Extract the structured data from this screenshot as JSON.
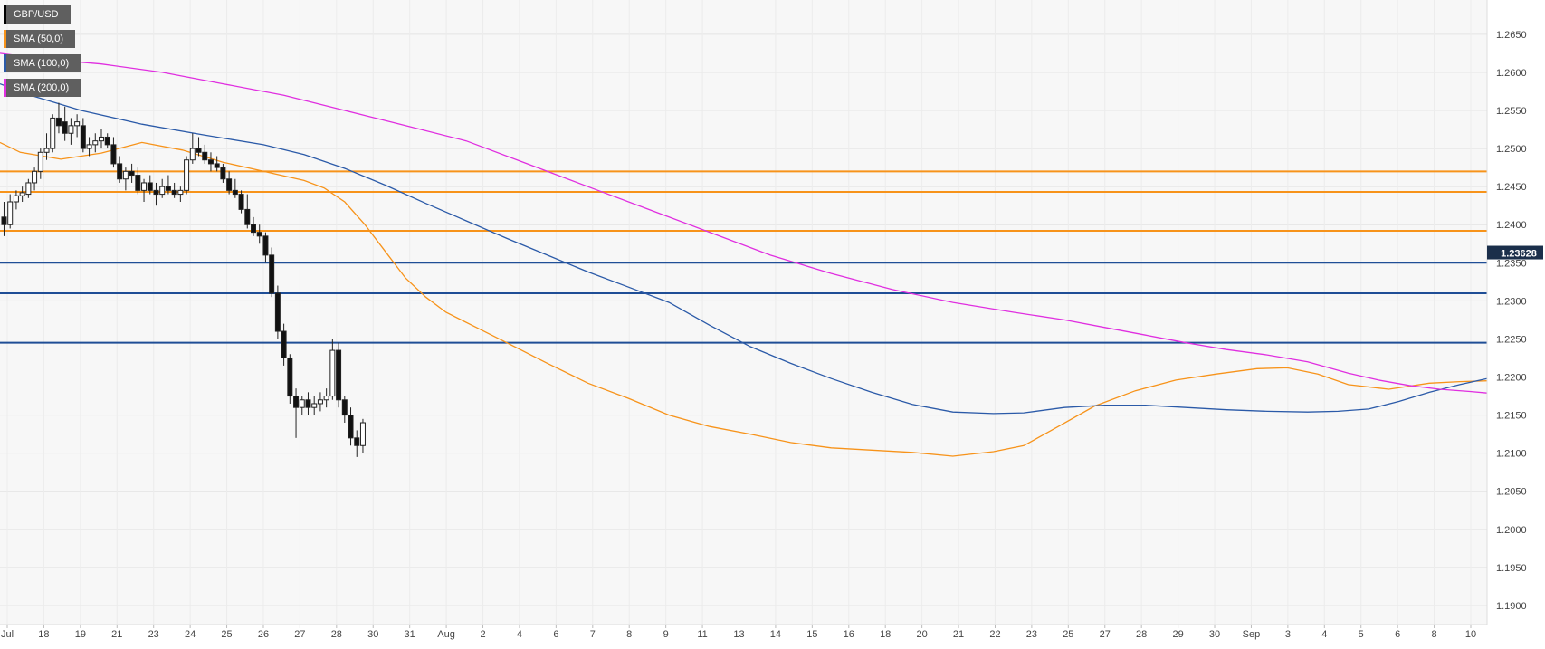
{
  "chart_data": {
    "type": "candlestick",
    "symbol": "GBP/USD",
    "last_price": 1.23628,
    "last_price_label": "1.23628",
    "ylim": [
      1.1875,
      1.2695
    ],
    "y_ticks": [
      "1.2650",
      "1.2600",
      "1.2550",
      "1.2500",
      "1.2450",
      "1.2400",
      "1.2350",
      "1.2300",
      "1.2250",
      "1.2200",
      "1.2150",
      "1.2100",
      "1.2050",
      "1.2000",
      "1.1950",
      "1.1900"
    ],
    "x_ticks": [
      "Jul",
      "18",
      "19",
      "21",
      "23",
      "24",
      "25",
      "26",
      "27",
      "28",
      "30",
      "31",
      "Aug",
      "2",
      "4",
      "6",
      "7",
      "8",
      "9",
      "11",
      "13",
      "14",
      "15",
      "16",
      "18",
      "20",
      "21",
      "22",
      "23",
      "25",
      "27",
      "28",
      "29",
      "30",
      "Sep",
      "3",
      "4",
      "5",
      "6",
      "8",
      "10"
    ],
    "grid": true,
    "legend_position": "top-left",
    "legend": [
      {
        "label": "GBP/USD",
        "color": "#000000"
      },
      {
        "label": "SMA (50,0)",
        "color": "#f7931a"
      },
      {
        "label": "SMA (100,0)",
        "color": "#2b5aa8"
      },
      {
        "label": "SMA (200,0)",
        "color": "#e02fe0"
      }
    ],
    "resistance_levels": [
      1.247,
      1.2443,
      1.2392
    ],
    "support_levels": [
      1.235,
      1.231,
      1.2245
    ],
    "resistance_color": "#f7931a",
    "support_color": "#1f4e96",
    "series": [
      {
        "name": "SMA (50,0)",
        "color": "#f7931a",
        "points": [
          [
            0,
            1.2508
          ],
          [
            20,
            1.2495
          ],
          [
            60,
            1.2486
          ],
          [
            100,
            1.2494
          ],
          [
            140,
            1.2508
          ],
          [
            180,
            1.2498
          ],
          [
            220,
            1.2482
          ],
          [
            260,
            1.247
          ],
          [
            300,
            1.2458
          ],
          [
            320,
            1.2448
          ],
          [
            340,
            1.243
          ],
          [
            360,
            1.24
          ],
          [
            380,
            1.2365
          ],
          [
            400,
            1.233
          ],
          [
            420,
            1.2305
          ],
          [
            440,
            1.2285
          ],
          [
            470,
            1.2265
          ],
          [
            500,
            1.2245
          ],
          [
            540,
            1.2218
          ],
          [
            580,
            1.2192
          ],
          [
            620,
            1.2172
          ],
          [
            660,
            1.215
          ],
          [
            700,
            1.2135
          ],
          [
            740,
            1.2125
          ],
          [
            780,
            1.2114
          ],
          [
            820,
            1.2107
          ],
          [
            860,
            1.2104
          ],
          [
            900,
            1.2101
          ],
          [
            940,
            1.2096
          ],
          [
            980,
            1.2102
          ],
          [
            1010,
            1.211
          ],
          [
            1040,
            1.2132
          ],
          [
            1080,
            1.2162
          ],
          [
            1120,
            1.2182
          ],
          [
            1160,
            1.2196
          ],
          [
            1200,
            1.2204
          ],
          [
            1240,
            1.2211
          ],
          [
            1270,
            1.2212
          ],
          [
            1300,
            1.2204
          ],
          [
            1330,
            1.219
          ],
          [
            1370,
            1.2184
          ],
          [
            1410,
            1.2192
          ],
          [
            1440,
            1.2194
          ],
          [
            1467,
            1.2195
          ]
        ]
      },
      {
        "name": "SMA (100,0)",
        "color": "#2b5aa8",
        "points": [
          [
            0,
            1.2585
          ],
          [
            30,
            1.257
          ],
          [
            80,
            1.255
          ],
          [
            140,
            1.2532
          ],
          [
            200,
            1.2518
          ],
          [
            260,
            1.2505
          ],
          [
            300,
            1.2492
          ],
          [
            340,
            1.2474
          ],
          [
            380,
            1.2452
          ],
          [
            420,
            1.2428
          ],
          [
            460,
            1.2405
          ],
          [
            500,
            1.2382
          ],
          [
            540,
            1.236
          ],
          [
            580,
            1.2338
          ],
          [
            620,
            1.2318
          ],
          [
            660,
            1.2298
          ],
          [
            700,
            1.2268
          ],
          [
            740,
            1.224
          ],
          [
            780,
            1.2218
          ],
          [
            820,
            1.2198
          ],
          [
            860,
            1.218
          ],
          [
            900,
            1.2164
          ],
          [
            940,
            1.2154
          ],
          [
            980,
            1.2152
          ],
          [
            1010,
            1.2153
          ],
          [
            1050,
            1.216
          ],
          [
            1090,
            1.2163
          ],
          [
            1130,
            1.2163
          ],
          [
            1170,
            1.216
          ],
          [
            1210,
            1.2157
          ],
          [
            1250,
            1.2155
          ],
          [
            1290,
            1.2154
          ],
          [
            1320,
            1.2155
          ],
          [
            1350,
            1.2158
          ],
          [
            1380,
            1.2168
          ],
          [
            1410,
            1.218
          ],
          [
            1440,
            1.219
          ],
          [
            1467,
            1.2198
          ]
        ]
      },
      {
        "name": "SMA (200,0)",
        "color": "#e02fe0",
        "points": [
          [
            0,
            1.2625
          ],
          [
            40,
            1.2618
          ],
          [
            100,
            1.2611
          ],
          [
            160,
            1.26
          ],
          [
            220,
            1.2585
          ],
          [
            280,
            1.257
          ],
          [
            340,
            1.255
          ],
          [
            400,
            1.253
          ],
          [
            460,
            1.251
          ],
          [
            520,
            1.248
          ],
          [
            580,
            1.245
          ],
          [
            640,
            1.242
          ],
          [
            700,
            1.239
          ],
          [
            760,
            1.236
          ],
          [
            820,
            1.2336
          ],
          [
            880,
            1.2315
          ],
          [
            940,
            1.2298
          ],
          [
            1000,
            1.2285
          ],
          [
            1050,
            1.2275
          ],
          [
            1090,
            1.2265
          ],
          [
            1130,
            1.2255
          ],
          [
            1170,
            1.2245
          ],
          [
            1210,
            1.2236
          ],
          [
            1250,
            1.2229
          ],
          [
            1290,
            1.222
          ],
          [
            1330,
            1.2205
          ],
          [
            1360,
            1.2196
          ],
          [
            1390,
            1.2189
          ],
          [
            1420,
            1.2184
          ],
          [
            1450,
            1.2181
          ],
          [
            1467,
            1.2179
          ]
        ]
      }
    ],
    "candles_note": "x is position index along time axis, values are open/high/low/close",
    "candles": [
      [
        4,
        1.241,
        1.243,
        1.2385,
        1.24
      ],
      [
        10,
        1.24,
        1.244,
        1.2395,
        1.243
      ],
      [
        16,
        1.243,
        1.2445,
        1.242,
        1.2438
      ],
      [
        22,
        1.2438,
        1.245,
        1.243,
        1.2442
      ],
      [
        28,
        1.244,
        1.246,
        1.2435,
        1.2455
      ],
      [
        34,
        1.2455,
        1.2475,
        1.2445,
        1.247
      ],
      [
        40,
        1.247,
        1.25,
        1.246,
        1.2495
      ],
      [
        46,
        1.2495,
        1.252,
        1.2485,
        1.25
      ],
      [
        52,
        1.25,
        1.2545,
        1.2495,
        1.254
      ],
      [
        58,
        1.254,
        1.256,
        1.252,
        1.253
      ],
      [
        64,
        1.2535,
        1.2555,
        1.251,
        1.252
      ],
      [
        70,
        1.252,
        1.254,
        1.2505,
        1.253
      ],
      [
        76,
        1.253,
        1.2545,
        1.2515,
        1.2535
      ],
      [
        82,
        1.253,
        1.254,
        1.2495,
        1.25
      ],
      [
        88,
        1.25,
        1.2515,
        1.249,
        1.2505
      ],
      [
        94,
        1.2505,
        1.252,
        1.2495,
        1.251
      ],
      [
        100,
        1.251,
        1.2525,
        1.25,
        1.2515
      ],
      [
        106,
        1.2515,
        1.252,
        1.25,
        1.2505
      ],
      [
        112,
        1.2505,
        1.2515,
        1.2475,
        1.248
      ],
      [
        118,
        1.248,
        1.249,
        1.2455,
        1.246
      ],
      [
        124,
        1.246,
        1.2475,
        1.2445,
        1.247
      ],
      [
        130,
        1.247,
        1.248,
        1.2455,
        1.2465
      ],
      [
        136,
        1.2465,
        1.2475,
        1.244,
        1.2445
      ],
      [
        142,
        1.2445,
        1.246,
        1.243,
        1.2455
      ],
      [
        148,
        1.2455,
        1.2465,
        1.244,
        1.2445
      ],
      [
        154,
        1.2445,
        1.2455,
        1.2425,
        1.244
      ],
      [
        160,
        1.244,
        1.246,
        1.2435,
        1.245
      ],
      [
        166,
        1.245,
        1.2465,
        1.244,
        1.2445
      ],
      [
        172,
        1.2445,
        1.2455,
        1.2435,
        1.244
      ],
      [
        178,
        1.244,
        1.245,
        1.243,
        1.2445
      ],
      [
        184,
        1.2445,
        1.249,
        1.244,
        1.2485
      ],
      [
        190,
        1.2485,
        1.252,
        1.248,
        1.25
      ],
      [
        196,
        1.25,
        1.2515,
        1.249,
        1.2495
      ],
      [
        202,
        1.2495,
        1.2505,
        1.248,
        1.2485
      ],
      [
        208,
        1.2485,
        1.2495,
        1.247,
        1.248
      ],
      [
        214,
        1.248,
        1.249,
        1.247,
        1.2475
      ],
      [
        220,
        1.2475,
        1.248,
        1.2455,
        1.246
      ],
      [
        226,
        1.246,
        1.247,
        1.244,
        1.2445
      ],
      [
        232,
        1.2445,
        1.246,
        1.2435,
        1.244
      ],
      [
        238,
        1.244,
        1.2445,
        1.2415,
        1.242
      ],
      [
        244,
        1.242,
        1.244,
        1.2395,
        1.24
      ],
      [
        250,
        1.24,
        1.241,
        1.2385,
        1.239
      ],
      [
        256,
        1.239,
        1.24,
        1.2375,
        1.2385
      ],
      [
        262,
        1.2385,
        1.239,
        1.235,
        1.236
      ],
      [
        268,
        1.236,
        1.237,
        1.2305,
        1.231
      ],
      [
        274,
        1.231,
        1.232,
        1.225,
        1.226
      ],
      [
        280,
        1.226,
        1.227,
        1.2215,
        1.2225
      ],
      [
        286,
        1.2225,
        1.223,
        1.2165,
        1.2175
      ],
      [
        292,
        1.2175,
        1.2185,
        1.212,
        1.216
      ],
      [
        298,
        1.216,
        1.2175,
        1.215,
        1.217
      ],
      [
        304,
        1.217,
        1.218,
        1.215,
        1.216
      ],
      [
        310,
        1.216,
        1.2175,
        1.215,
        1.2165
      ],
      [
        316,
        1.2165,
        1.218,
        1.2155,
        1.217
      ],
      [
        322,
        1.217,
        1.2185,
        1.216,
        1.2175
      ],
      [
        328,
        1.2175,
        1.225,
        1.217,
        1.2235
      ],
      [
        334,
        1.2235,
        1.2245,
        1.216,
        1.217
      ],
      [
        340,
        1.217,
        1.2175,
        1.214,
        1.215
      ],
      [
        346,
        1.215,
        1.216,
        1.211,
        1.212
      ],
      [
        352,
        1.212,
        1.213,
        1.2095,
        1.211
      ],
      [
        358,
        1.211,
        1.2145,
        1.21,
        1.214
      ]
    ]
  }
}
